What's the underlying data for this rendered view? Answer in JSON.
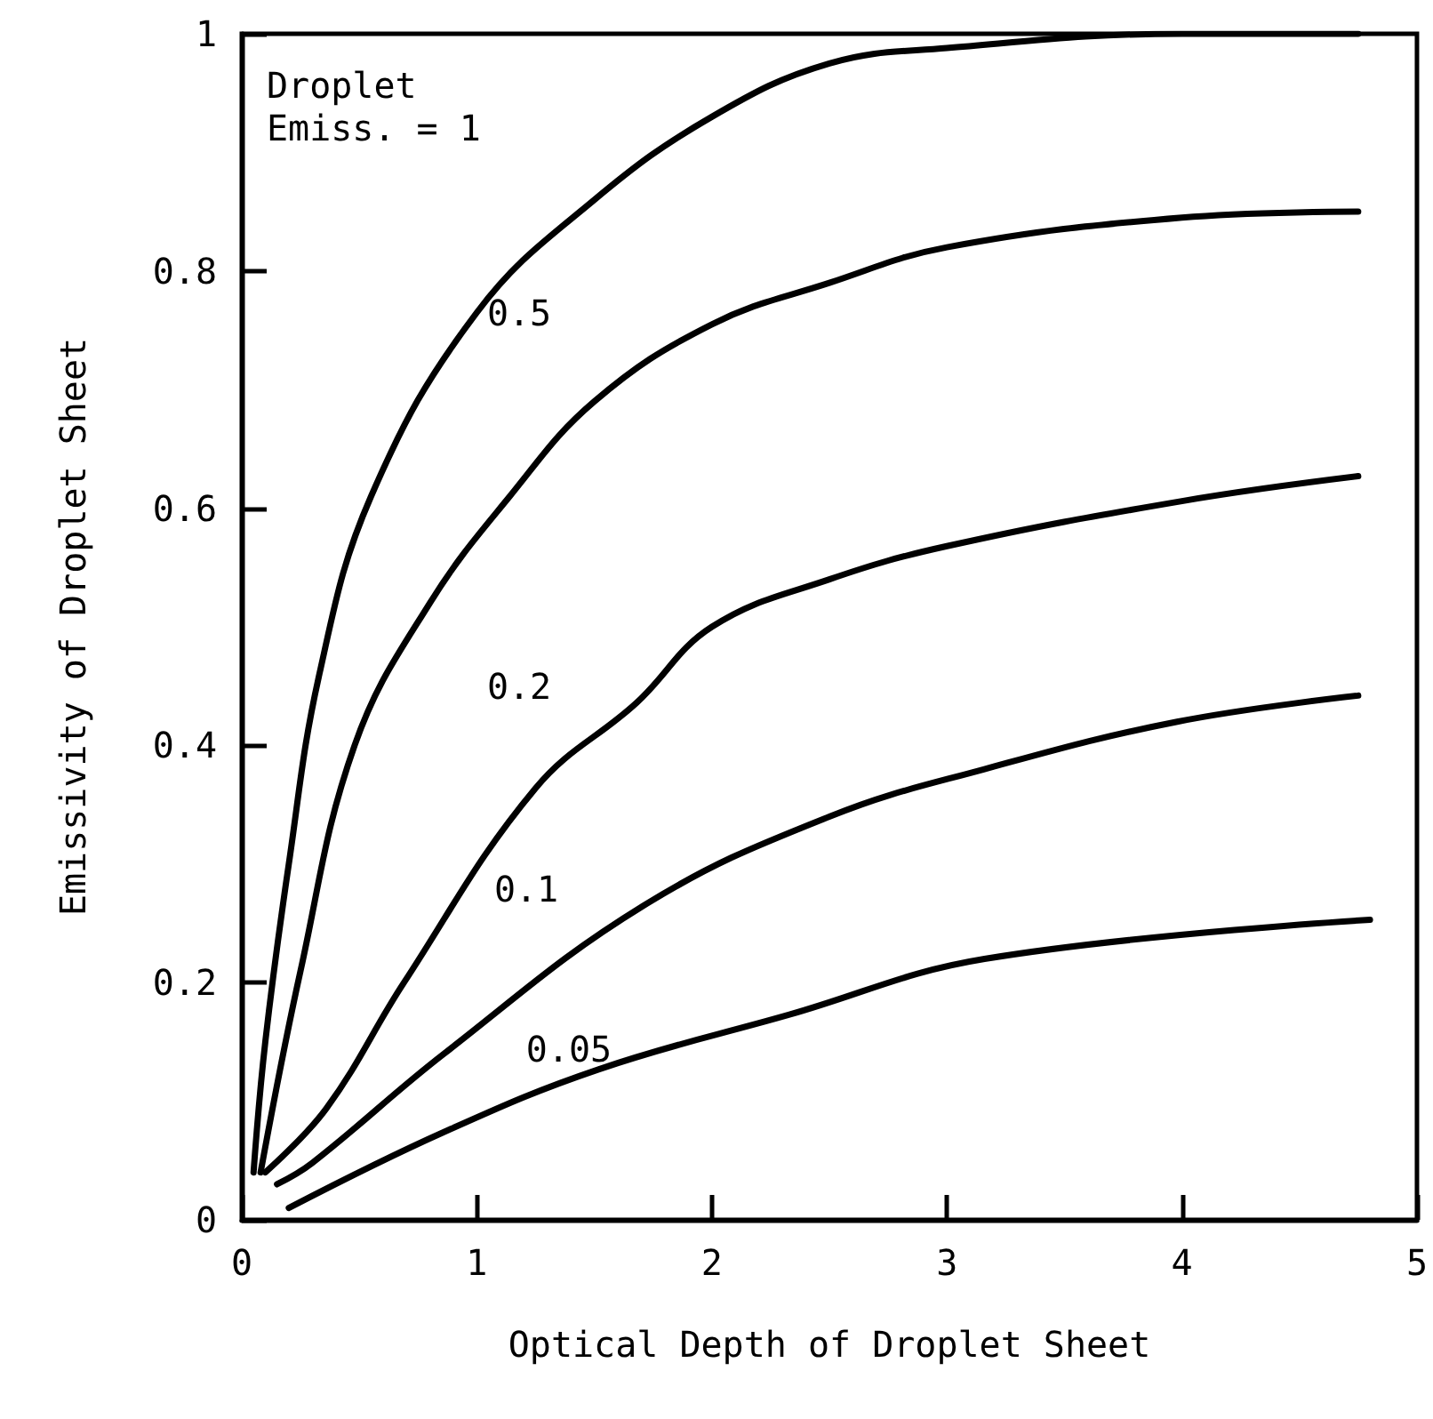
{
  "chart_data": {
    "type": "line",
    "xlabel": "Optical Depth of Droplet Sheet",
    "ylabel": "Emissivity of Droplet Sheet",
    "xlim": [
      0,
      5
    ],
    "xticks": [
      0,
      1,
      2,
      3,
      4,
      5
    ],
    "ylim": [
      0,
      1
    ],
    "yticks": [
      0,
      0.2,
      0.4,
      0.6,
      0.8,
      1
    ],
    "grid": false,
    "marker": "none",
    "line_style": "solid",
    "series": [
      {
        "color": "#000000",
        "x": [
          0.05,
          0.1,
          0.2,
          0.33,
          0.55,
          1,
          1.5,
          2,
          2.5,
          3,
          4,
          4.75
        ],
        "values": [
          0.04,
          0.15,
          0.3,
          0.46,
          0.61,
          0.765,
          0.86,
          0.93,
          0.975,
          0.988,
          1.0,
          1.0
        ]
      },
      {
        "color": "#000000",
        "x": [
          0.08,
          0.25,
          0.48,
          0.8,
          1.14,
          1.5,
          2,
          2.5,
          3,
          4,
          4.75
        ],
        "values": [
          0.04,
          0.21,
          0.4,
          0.52,
          0.61,
          0.69,
          0.755,
          0.79,
          0.82,
          0.845,
          0.85
        ]
      },
      {
        "color": "#000000",
        "x": [
          0.1,
          0.36,
          0.69,
          1.25,
          1.68,
          2,
          2.5,
          3,
          4,
          4.75
        ],
        "values": [
          0.04,
          0.094,
          0.2,
          0.364,
          0.436,
          0.5,
          0.54,
          0.568,
          0.606,
          0.627
        ]
      },
      {
        "color": "#000000",
        "x": [
          0.15,
          0.3,
          0.86,
          1.71,
          2.5,
          3.16,
          3.98,
          4.75
        ],
        "values": [
          0.03,
          0.048,
          0.14,
          0.265,
          0.34,
          0.38,
          0.42,
          0.442
        ]
      },
      {
        "color": "#000000",
        "x": [
          0.2,
          0.86,
          1.52,
          2.33,
          3.16,
          4.8
        ],
        "values": [
          0.01,
          0.074,
          0.127,
          0.173,
          0.22,
          0.253
        ]
      }
    ],
    "annotations": [
      "Droplet\nEmiss. = 1",
      "0.5",
      "0.2",
      "0.1",
      "0.05"
    ]
  }
}
